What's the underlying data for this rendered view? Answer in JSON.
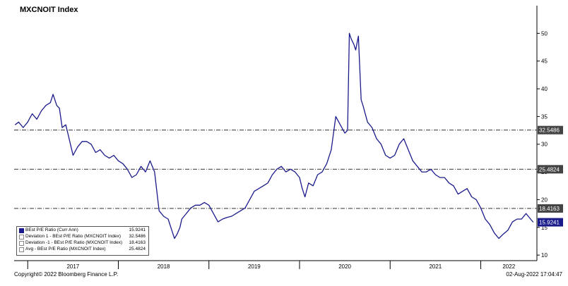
{
  "title": "MXCNOIT Index",
  "copyright": "Copyright© 2022 Bloomberg Finance L.P.",
  "timestamp": "02-Aug-2022 17:04:47",
  "colors": {
    "series": "#1a1a8c",
    "ref_line": "#333333",
    "label_dark": "#444444",
    "label_light": "#ffffff",
    "current_label_bg": "#1a1a8c"
  },
  "legend": [
    {
      "label": "BEst P/E Ratio (Curr Ann)",
      "value": "15.9241",
      "swatch": "filled"
    },
    {
      "label": "Deviation 1 - BEst P/E Ratio (MXCNOIT Index)",
      "value": "32.5486",
      "swatch": "hollow"
    },
    {
      "label": "Deviation  -1 - BEst P/E Ratio (MXCNOIT Index)",
      "value": "18.4163",
      "swatch": "hollow"
    },
    {
      "label": "Avg - BEst P/E Ratio (MXCNOIT Index)",
      "value": "25.4824",
      "swatch": "hollow"
    }
  ],
  "chart_data": {
    "type": "line",
    "title": "MXCNOIT Index",
    "xlabel": "",
    "ylabel": "",
    "ylim": [
      9,
      55
    ],
    "xlim": [
      2016.85,
      2022.62
    ],
    "y_ticks": [
      10,
      15,
      20,
      25,
      30,
      35,
      40,
      45,
      50
    ],
    "x_tick_labels": [
      {
        "label": "2017",
        "x": 2017.0
      },
      {
        "label": "2018",
        "x": 2018.0
      },
      {
        "label": "2019",
        "x": 2019.0
      },
      {
        "label": "2020",
        "x": 2020.0
      },
      {
        "label": "2021",
        "x": 2021.0
      },
      {
        "label": "2022",
        "x": 2022.0
      }
    ],
    "reference_lines": [
      {
        "name": "Deviation 1",
        "value": 32.5486,
        "label": "32.5486",
        "style": "dash-dot"
      },
      {
        "name": "Avg",
        "value": 25.4824,
        "label": "25.4824",
        "style": "dash-dot"
      },
      {
        "name": "Deviation -1",
        "value": 18.4163,
        "label": "18.4163",
        "style": "dash-dot"
      }
    ],
    "current_value_label": "15.9241",
    "legend_position": "bottom-left",
    "grid": false,
    "series": [
      {
        "name": "BEst P/E Ratio (Curr Ann)",
        "x": [
          2016.86,
          2016.9,
          2016.95,
          2017.0,
          2017.05,
          2017.1,
          2017.15,
          2017.2,
          2017.25,
          2017.28,
          2017.32,
          2017.35,
          2017.38,
          2017.42,
          2017.45,
          2017.5,
          2017.55,
          2017.6,
          2017.65,
          2017.7,
          2017.75,
          2017.8,
          2017.85,
          2017.9,
          2017.95,
          2018.0,
          2018.05,
          2018.1,
          2018.15,
          2018.2,
          2018.25,
          2018.3,
          2018.35,
          2018.4,
          2018.45,
          2018.5,
          2018.55,
          2018.6,
          2018.62,
          2018.65,
          2018.68,
          2018.7,
          2018.75,
          2018.8,
          2018.85,
          2018.9,
          2018.95,
          2019.0,
          2019.05,
          2019.1,
          2019.15,
          2019.2,
          2019.25,
          2019.3,
          2019.35,
          2019.4,
          2019.45,
          2019.5,
          2019.55,
          2019.6,
          2019.65,
          2019.7,
          2019.75,
          2019.8,
          2019.85,
          2019.9,
          2019.95,
          2020.0,
          2020.03,
          2020.06,
          2020.1,
          2020.15,
          2020.2,
          2020.25,
          2020.3,
          2020.35,
          2020.4,
          2020.45,
          2020.5,
          2020.53,
          2020.55,
          2020.57,
          2020.6,
          2020.62,
          2020.65,
          2020.68,
          2020.7,
          2020.75,
          2020.8,
          2020.85,
          2020.9,
          2020.95,
          2021.0,
          2021.05,
          2021.1,
          2021.15,
          2021.2,
          2021.25,
          2021.3,
          2021.35,
          2021.4,
          2021.45,
          2021.5,
          2021.55,
          2021.6,
          2021.65,
          2021.7,
          2021.75,
          2021.8,
          2021.85,
          2021.9,
          2021.95,
          2022.0,
          2022.05,
          2022.1,
          2022.15,
          2022.2,
          2022.25,
          2022.3,
          2022.35,
          2022.4,
          2022.45,
          2022.5,
          2022.55,
          2022.58
        ],
        "y": [
          33.5,
          34.0,
          33.0,
          34.0,
          35.5,
          34.5,
          36.0,
          37.0,
          37.5,
          39.0,
          37.0,
          36.5,
          33.0,
          33.5,
          31.5,
          28.0,
          29.5,
          30.5,
          30.5,
          30.0,
          28.5,
          29.0,
          28.0,
          27.5,
          28.0,
          27.0,
          26.5,
          25.5,
          24.0,
          24.5,
          26.0,
          25.0,
          27.0,
          25.0,
          18.0,
          17.0,
          16.5,
          14.0,
          13.0,
          13.8,
          15.0,
          16.5,
          17.5,
          18.5,
          19.0,
          19.0,
          19.5,
          19.0,
          17.5,
          16.0,
          16.5,
          16.8,
          17.0,
          17.5,
          18.0,
          18.5,
          20.0,
          21.5,
          22.0,
          22.5,
          23.0,
          24.5,
          25.5,
          26.0,
          25.0,
          25.5,
          25.0,
          24.0,
          22.0,
          20.5,
          23.0,
          22.5,
          24.5,
          25.0,
          26.5,
          29.0,
          35.0,
          33.5,
          32.0,
          32.5,
          50.0,
          49.0,
          48.0,
          47.0,
          49.5,
          38.0,
          37.0,
          34.0,
          33.0,
          31.0,
          30.0,
          28.0,
          27.5,
          28.0,
          30.0,
          31.0,
          29.0,
          27.0,
          26.0,
          25.0,
          25.0,
          25.5,
          24.5,
          24.0,
          24.0,
          23.0,
          22.5,
          21.0,
          21.5,
          22.0,
          20.5,
          20.0,
          18.5,
          16.5,
          15.5,
          14.0,
          13.0,
          13.8,
          14.5,
          16.0,
          16.5,
          16.5,
          17.5,
          16.5,
          15.9241
        ]
      }
    ]
  }
}
